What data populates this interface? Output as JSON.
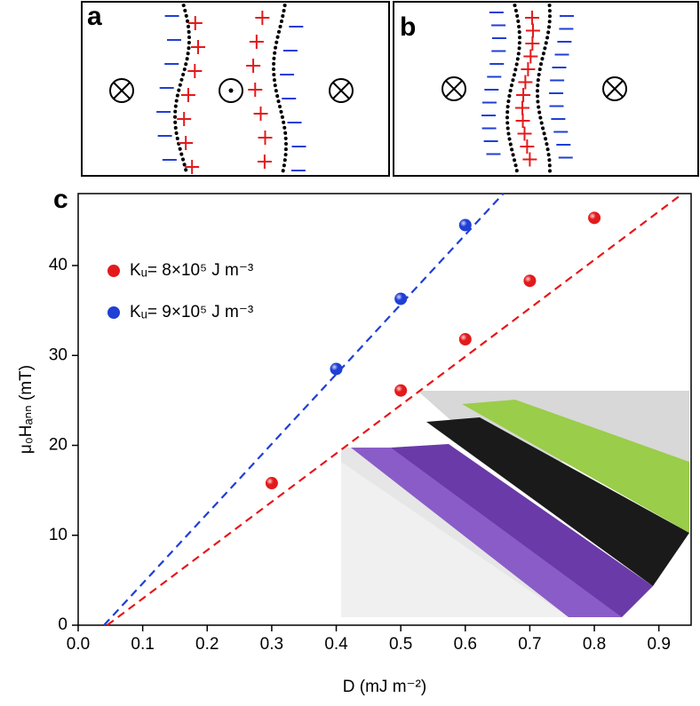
{
  "panels": [
    "a",
    "b",
    "c"
  ],
  "chart_data": {
    "type": "scatter",
    "x_label": "D (mJ m⁻²)",
    "y_label": "μ₀Hₐₙₙ (mT)",
    "xlim": [
      0,
      0.95
    ],
    "ylim": [
      0,
      48
    ],
    "xticks": [
      {
        "value": 0,
        "label": "0.0"
      },
      0.1,
      0.2,
      0.3,
      0.4,
      0.5,
      0.6,
      0.7,
      0.8,
      0.9
    ],
    "yticks": [
      0,
      10,
      20,
      30,
      40
    ],
    "series": [
      {
        "name": "Kᵤ= 8×10⁵ J m⁻³",
        "color": "#e31a1c",
        "x": [
          0.3,
          0.5,
          0.6,
          0.7,
          0.8
        ],
        "values": [
          15.8,
          26.1,
          31.8,
          38.3,
          45.3
        ],
        "fit_x": [
          0.045,
          0.937
        ],
        "fit_values": [
          0,
          48
        ]
      },
      {
        "name": "Kᵤ= 9×10⁵ J m⁻³",
        "color": "#1f3fd6",
        "x": [
          0.4,
          0.5,
          0.6
        ],
        "values": [
          28.5,
          36.3,
          44.5
        ],
        "fit_x": [
          0.04,
          0.659
        ],
        "fit_values": [
          0,
          48
        ]
      }
    ]
  }
}
